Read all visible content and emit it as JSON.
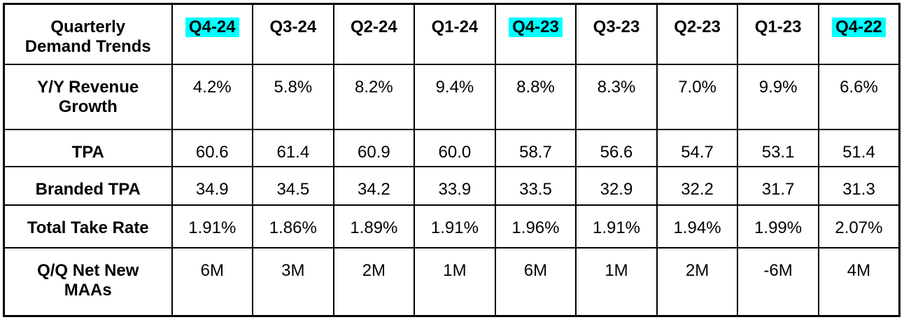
{
  "colors": {
    "highlight": "#00FFFF",
    "border": "#000000",
    "background": "#FFFFFF",
    "text": "#000000"
  },
  "chart_data": {
    "type": "table",
    "title": "Quarterly Demand Trends",
    "corner_label": "Quarterly Demand Trends",
    "columns": [
      {
        "label": "Q4-24",
        "highlighted": true
      },
      {
        "label": "Q3-24",
        "highlighted": false
      },
      {
        "label": "Q2-24",
        "highlighted": false
      },
      {
        "label": "Q1-24",
        "highlighted": false
      },
      {
        "label": "Q4-23",
        "highlighted": true
      },
      {
        "label": "Q3-23",
        "highlighted": false
      },
      {
        "label": "Q2-23",
        "highlighted": false
      },
      {
        "label": "Q1-23",
        "highlighted": false
      },
      {
        "label": "Q4-22",
        "highlighted": true
      }
    ],
    "rows": [
      {
        "label": "Y/Y Revenue Growth",
        "values": [
          "4.2%",
          "5.8%",
          "8.2%",
          "9.4%",
          "8.8%",
          "8.3%",
          "7.0%",
          "9.9%",
          "6.6%"
        ]
      },
      {
        "label": "TPA",
        "values": [
          "60.6",
          "61.4",
          "60.9",
          "60.0",
          "58.7",
          "56.6",
          "54.7",
          "53.1",
          "51.4"
        ]
      },
      {
        "label": "Branded TPA",
        "values": [
          "34.9",
          "34.5",
          "34.2",
          "33.9",
          "33.5",
          "32.9",
          "32.2",
          "31.7",
          "31.3"
        ]
      },
      {
        "label": "Total Take Rate",
        "values": [
          "1.91%",
          "1.86%",
          "1.89%",
          "1.91%",
          "1.96%",
          "1.91%",
          "1.94%",
          "1.99%",
          "2.07%"
        ]
      },
      {
        "label": "Q/Q Net New MAAs",
        "values": [
          "6M",
          "3M",
          "2M",
          "1M",
          "6M",
          "1M",
          "2M",
          "-6M",
          "4M"
        ]
      }
    ]
  }
}
